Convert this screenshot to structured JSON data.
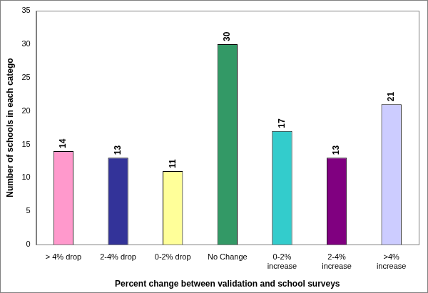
{
  "chart_data": {
    "type": "bar",
    "categories": [
      "> 4% drop",
      "2-4% drop",
      "0-2% drop",
      "No Change",
      "0-2%\nincrease",
      "2-4%\nincrease",
      ">4%\nincrease"
    ],
    "values": [
      14,
      13,
      11,
      30,
      17,
      13,
      21
    ],
    "colors": [
      "#ff99cc",
      "#333399",
      "#ffff99",
      "#339966",
      "#33cccc",
      "#800080",
      "#ccccff"
    ],
    "xlabel": "Percent change between validation and school surveys",
    "ylabel": "Number of schools in each catego",
    "ylim": [
      0,
      35
    ],
    "yticks": [
      0,
      5,
      10,
      15,
      20,
      25,
      30,
      35
    ],
    "grid": false,
    "data_labels": true
  }
}
